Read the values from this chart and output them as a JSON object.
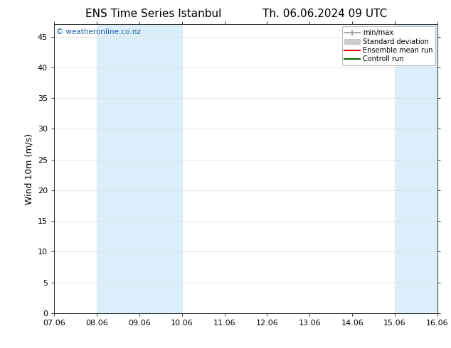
{
  "title_left": "ENS Time Series Istanbul",
  "title_right": "Th. 06.06.2024 09 UTC",
  "ylabel": "Wind 10m (m/s)",
  "watermark": "© weatheronline.co.nz",
  "background_color": "#ffffff",
  "plot_bg_color": "#ffffff",
  "ylim": [
    0,
    47
  ],
  "yticks": [
    0,
    5,
    10,
    15,
    20,
    25,
    30,
    35,
    40,
    45
  ],
  "xlim": [
    0,
    9
  ],
  "xtick_labels": [
    "07.06",
    "08.06",
    "09.06",
    "10.06",
    "11.06",
    "12.06",
    "13.06",
    "14.06",
    "15.06",
    "16.06"
  ],
  "xtick_positions": [
    0,
    1,
    2,
    3,
    4,
    5,
    6,
    7,
    8,
    9
  ],
  "shaded_regions": [
    {
      "x_start": 1,
      "x_end": 2,
      "color": "#dceef9"
    },
    {
      "x_start": 2,
      "x_end": 3,
      "color": "#dceef9"
    },
    {
      "x_start": 8,
      "x_end": 9,
      "color": "#dceef9"
    }
  ],
  "legend_entries": [
    {
      "label": "min/max",
      "color": "#aaaaaa",
      "style": "line_with_caps"
    },
    {
      "label": "Standard deviation",
      "color": "#cccccc",
      "style": "filled_box"
    },
    {
      "label": "Ensemble mean run",
      "color": "#ff0000",
      "style": "line"
    },
    {
      "label": "Controll run",
      "color": "#008000",
      "style": "line"
    }
  ],
  "title_fontsize": 11,
  "axis_label_fontsize": 9,
  "tick_fontsize": 8,
  "watermark_color": "#1a5faa",
  "grid_color": "#dddddd",
  "spine_color": "#333333"
}
